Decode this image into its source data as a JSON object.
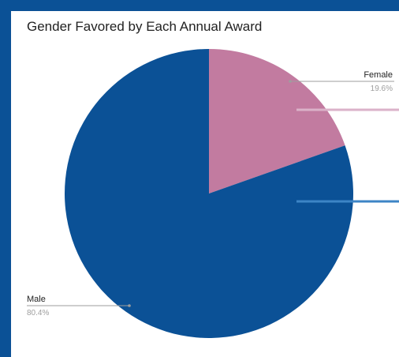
{
  "chart_data": {
    "type": "pie",
    "title": "Gender Favored by Each Annual Award",
    "slices": [
      {
        "label": "Female",
        "value": 19.6,
        "percent_label": "19.6%",
        "color": "#c27ba0"
      },
      {
        "label": "Male",
        "value": 80.4,
        "percent_label": "80.4%",
        "color": "#0b5196"
      }
    ],
    "legend": "callout labels",
    "accent_colors": {
      "female_line": "#dbb2c9",
      "male_line": "#3d85c6",
      "border": "#0b5196"
    }
  }
}
